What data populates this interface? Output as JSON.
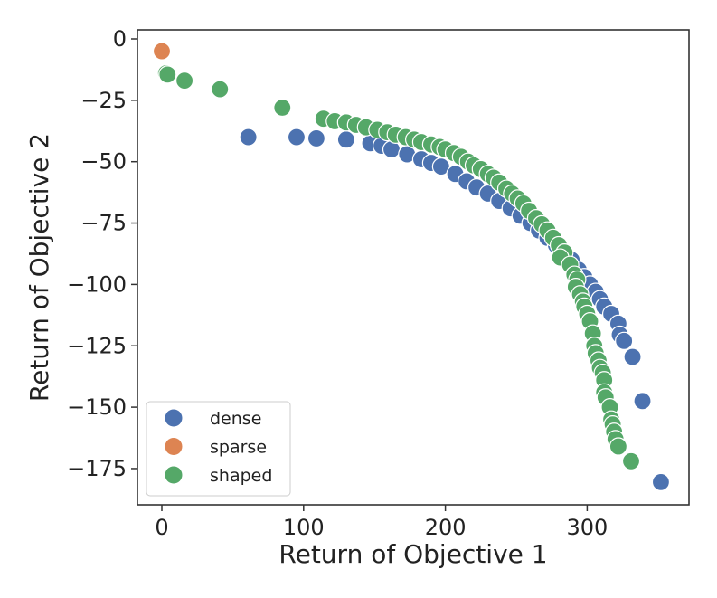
{
  "chart_data": {
    "type": "scatter",
    "title": "",
    "xlabel": "Return of Objective 1",
    "ylabel": "Return of Objective 2",
    "xlim": [
      -10,
      370
    ],
    "ylim": [
      -190,
      5
    ],
    "xticks": [
      0,
      100,
      200,
      300
    ],
    "yticks": [
      0,
      -25,
      -50,
      -75,
      -100,
      -125,
      -150,
      -175
    ],
    "xtick_labels": [
      "0",
      "100",
      "200",
      "300"
    ],
    "ytick_labels": [
      "0",
      "−25",
      "−50",
      "−75",
      "−100",
      "−125",
      "−150",
      "−175"
    ],
    "grid": false,
    "legend": {
      "placement": "lower-left"
    },
    "series": [
      {
        "name": "dense",
        "color": "#4c72b0",
        "points": [
          [
            61,
            -40
          ],
          [
            95,
            -40
          ],
          [
            109,
            -40.5
          ],
          [
            130,
            -41
          ],
          [
            147,
            -42.5
          ],
          [
            155,
            -43.5
          ],
          [
            162,
            -45
          ],
          [
            173,
            -47
          ],
          [
            183,
            -49
          ],
          [
            190,
            -50.5
          ],
          [
            197,
            -52
          ],
          [
            207,
            -55
          ],
          [
            215,
            -58
          ],
          [
            222,
            -60.5
          ],
          [
            230,
            -63
          ],
          [
            238,
            -66
          ],
          [
            246,
            -69
          ],
          [
            253,
            -72
          ],
          [
            260,
            -75
          ],
          [
            266,
            -78
          ],
          [
            272,
            -81
          ],
          [
            278,
            -84
          ],
          [
            283,
            -87
          ],
          [
            289,
            -90
          ],
          [
            294,
            -94
          ],
          [
            298,
            -97
          ],
          [
            302,
            -100
          ],
          [
            306,
            -103
          ],
          [
            309,
            -106
          ],
          [
            312,
            -109
          ],
          [
            317,
            -112
          ],
          [
            322,
            -116
          ],
          [
            323,
            -120.5
          ],
          [
            326,
            -123
          ],
          [
            332,
            -129.5
          ],
          [
            339,
            -147.5
          ],
          [
            352,
            -180.5
          ]
        ]
      },
      {
        "name": "sparse",
        "color": "#dd8452",
        "points": [
          [
            0,
            -5
          ]
        ]
      },
      {
        "name": "shaped",
        "color": "#55a868",
        "points": [
          [
            3,
            -14
          ],
          [
            4,
            -14.5
          ],
          [
            16,
            -17
          ],
          [
            41,
            -20.5
          ],
          [
            85,
            -28
          ],
          [
            114,
            -32.5
          ],
          [
            122,
            -33.5
          ],
          [
            130,
            -34
          ],
          [
            137,
            -35
          ],
          [
            144,
            -36
          ],
          [
            152,
            -37
          ],
          [
            159,
            -38
          ],
          [
            165,
            -39
          ],
          [
            172,
            -40
          ],
          [
            178,
            -41
          ],
          [
            183,
            -42
          ],
          [
            190,
            -43
          ],
          [
            196,
            -44
          ],
          [
            200,
            -45
          ],
          [
            206,
            -46.5
          ],
          [
            211,
            -48
          ],
          [
            216,
            -50
          ],
          [
            220,
            -51.5
          ],
          [
            225,
            -53
          ],
          [
            230,
            -55
          ],
          [
            234,
            -56.5
          ],
          [
            238,
            -58.5
          ],
          [
            243,
            -61
          ],
          [
            247,
            -63
          ],
          [
            251,
            -65
          ],
          [
            255,
            -67
          ],
          [
            259,
            -70
          ],
          [
            264,
            -73
          ],
          [
            268,
            -75.5
          ],
          [
            272,
            -78
          ],
          [
            276,
            -81
          ],
          [
            280,
            -84
          ],
          [
            284,
            -87
          ],
          [
            281,
            -89
          ],
          [
            288,
            -92
          ],
          [
            291,
            -96
          ],
          [
            293,
            -98
          ],
          [
            292,
            -101
          ],
          [
            295,
            -104
          ],
          [
            297,
            -107
          ],
          [
            298,
            -109
          ],
          [
            300,
            -112
          ],
          [
            302,
            -115
          ],
          [
            304,
            -120
          ],
          [
            305,
            -125
          ],
          [
            306,
            -128
          ],
          [
            308,
            -131
          ],
          [
            309,
            -134
          ],
          [
            311,
            -136
          ],
          [
            312,
            -139
          ],
          [
            312,
            -144
          ],
          [
            313,
            -146
          ],
          [
            316,
            -150
          ],
          [
            317,
            -155
          ],
          [
            318,
            -157
          ],
          [
            319,
            -160
          ],
          [
            320,
            -163
          ],
          [
            322,
            -166
          ],
          [
            331,
            -172
          ]
        ]
      }
    ]
  }
}
